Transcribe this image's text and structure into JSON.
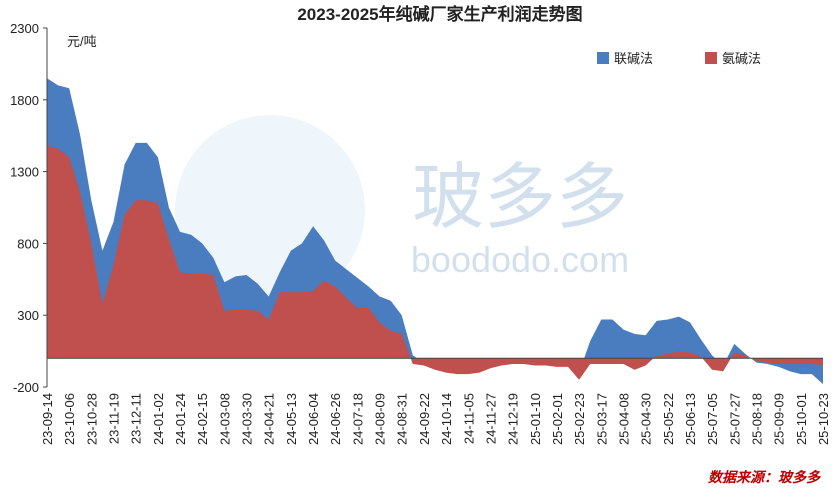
{
  "chart_data": {
    "type": "area",
    "title": "2023-2025年纯碱厂家生产利润走势图",
    "unit": "元/吨",
    "source": "数据来源：玻多多",
    "watermark": [
      "玻多多",
      "boododo.com"
    ],
    "categories": [
      "23-09-14",
      null,
      "23-10-06",
      null,
      "23-10-28",
      null,
      "23-11-19",
      null,
      "23-12-11",
      null,
      "24-01-02",
      null,
      "24-01-24",
      null,
      "24-02-15",
      null,
      "24-03-08",
      null,
      "24-03-30",
      null,
      "24-04-21",
      null,
      "24-05-13",
      null,
      "24-06-04",
      null,
      "24-06-26",
      null,
      "24-07-18",
      null,
      "24-08-09",
      null,
      "24-08-31",
      null,
      "24-09-22",
      null,
      "24-10-14",
      null,
      "24-11-05",
      null,
      "24-11-27",
      null,
      "24-12-19",
      null,
      "25-01-10",
      null,
      "25-02-01",
      null,
      "25-02-23",
      null,
      "25-03-17",
      null,
      "25-04-08",
      null,
      "25-04-30",
      null,
      "25-05-22",
      null,
      "25-06-13",
      null,
      "25-07-05",
      null,
      "25-07-27",
      null,
      "25-08-18",
      null,
      "25-09-09",
      null,
      "25-10-01",
      null,
      "25-10-23"
    ],
    "series": [
      {
        "name": "联碱法",
        "color": "#4a7cc0",
        "values": [
          1950,
          1900,
          1880,
          1550,
          1100,
          750,
          950,
          1350,
          1500,
          1500,
          1400,
          1050,
          880,
          860,
          800,
          700,
          530,
          570,
          580,
          520,
          430,
          600,
          750,
          800,
          920,
          820,
          680,
          620,
          560,
          500,
          430,
          400,
          300,
          20,
          -30,
          -40,
          -60,
          -70,
          -70,
          -60,
          -40,
          -30,
          -20,
          -10,
          -30,
          -30,
          -40,
          -40,
          -100,
          120,
          270,
          270,
          200,
          170,
          160,
          260,
          270,
          290,
          250,
          130,
          20,
          -50,
          100,
          30,
          -30,
          -40,
          -60,
          -90,
          -110,
          -110,
          -180
        ]
      },
      {
        "name": "氨碱法",
        "color": "#c0504d",
        "values": [
          1480,
          1460,
          1400,
          1150,
          800,
          380,
          650,
          1000,
          1100,
          1100,
          1080,
          830,
          600,
          590,
          590,
          580,
          330,
          340,
          340,
          330,
          270,
          460,
          460,
          460,
          470,
          540,
          500,
          420,
          350,
          350,
          250,
          190,
          170,
          -40,
          -50,
          -80,
          -100,
          -110,
          -110,
          -100,
          -70,
          -50,
          -40,
          -40,
          -50,
          -50,
          -60,
          -60,
          -150,
          -40,
          -40,
          -40,
          -40,
          -80,
          -50,
          20,
          30,
          50,
          40,
          10,
          -80,
          -90,
          40,
          20,
          -20,
          -30,
          -40,
          -40,
          -40,
          -40,
          -50
        ]
      }
    ],
    "ylim": [
      -200,
      2300
    ],
    "yticks": [
      -200,
      300,
      800,
      1300,
      1800,
      2300
    ],
    "grid": false,
    "legend": "top-right"
  }
}
